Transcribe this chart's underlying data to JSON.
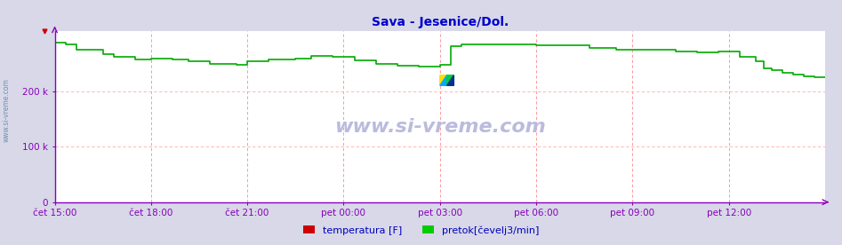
{
  "title": "Sava - Jesenice/Dol.",
  "title_color": "#0000cc",
  "bg_color": "#d8d8e8",
  "plot_bg_color": "#ffffff",
  "grid_color_x": "#ff8888",
  "grid_color_y": "#ffaaaa",
  "axis_color": "#8800bb",
  "tick_label_color": "#0000bb",
  "watermark_text": "www.si-vreme.com",
  "watermark_color": "#bbbbdd",
  "x_labels": [
    "čet 15:00",
    "čet 18:00",
    "čet 21:00",
    "pet 00:00",
    "pet 03:00",
    "pet 06:00",
    "pet 09:00",
    "pet 12:00"
  ],
  "y_ticks": [
    0,
    100000,
    200000
  ],
  "y_tick_labels": [
    "0",
    "100 k",
    "200 k"
  ],
  "ylim": [
    0,
    310000
  ],
  "legend_labels": [
    "temperatura [F]",
    "pretok[čevelj3/min]"
  ],
  "legend_colors": [
    "#cc0000",
    "#00cc00"
  ],
  "line_color": "#00aa00",
  "line_width": 1.2,
  "n_points": 289
}
